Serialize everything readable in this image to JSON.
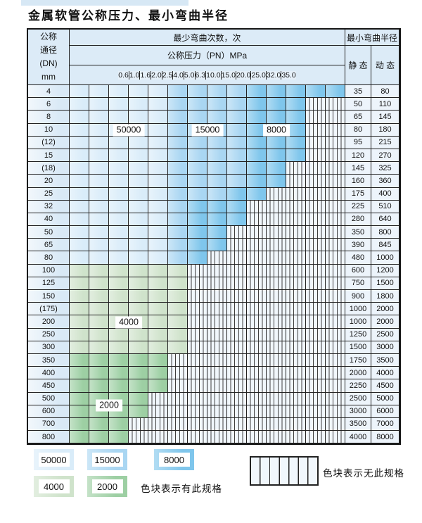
{
  "title": "金属软管公称压力、最小弯曲半径",
  "colors": {
    "cycles_50000": "#d9ecf9",
    "cycles_15000": "#a9d6f2",
    "cycles_8000": "#7fc6ec",
    "cycles_4000": "#cfe3cb",
    "cycles_2000": "#9dcfa3",
    "no_spec_bg": "#f1f7fc"
  },
  "table": {
    "header": {
      "dn_lines": [
        "公称",
        "通径",
        "(DN)",
        "mm"
      ],
      "bend_times": "最少弯曲次数，次",
      "pressure": "公称压力（PN）MPa",
      "radius": "最小弯曲半径",
      "static_label": "静 态",
      "dynamic_label": "动 态",
      "pressure_values": [
        "0.6",
        "1.0",
        "1.6",
        "2.0",
        "2.5",
        "4.0",
        "5.0",
        "6.3",
        "10.0",
        "15.0",
        "20.0",
        "25.0",
        "32.0",
        "35.0"
      ]
    },
    "rows": [
      {
        "dn": "4",
        "static": "35",
        "dynamic": "80",
        "zones": [
          [
            "b1",
            5
          ],
          [
            "b2",
            4
          ],
          [
            "b3",
            5
          ]
        ]
      },
      {
        "dn": "6",
        "static": "50",
        "dynamic": "110",
        "zones": [
          [
            "b1",
            5
          ],
          [
            "b2",
            4
          ],
          [
            "b3",
            3
          ]
        ]
      },
      {
        "dn": "8",
        "static": "65",
        "dynamic": "145",
        "zones": [
          [
            "b1",
            5
          ],
          [
            "b2",
            4
          ],
          [
            "b3",
            3
          ]
        ]
      },
      {
        "dn": "10",
        "static": "80",
        "dynamic": "180",
        "zones": [
          [
            "b1",
            5
          ],
          [
            "b2",
            4
          ],
          [
            "b3",
            3
          ]
        ]
      },
      {
        "dn": "(12)",
        "static": "95",
        "dynamic": "215",
        "zones": [
          [
            "b1",
            5
          ],
          [
            "b2",
            4
          ],
          [
            "b3",
            3
          ]
        ]
      },
      {
        "dn": "15",
        "static": "120",
        "dynamic": "270",
        "zones": [
          [
            "b1",
            5
          ],
          [
            "b2",
            4
          ],
          [
            "b3",
            3
          ]
        ]
      },
      {
        "dn": "(18)",
        "static": "145",
        "dynamic": "325",
        "zones": [
          [
            "b1",
            5
          ],
          [
            "b2",
            4
          ],
          [
            "b3",
            2
          ]
        ]
      },
      {
        "dn": "20",
        "static": "160",
        "dynamic": "360",
        "zones": [
          [
            "b1",
            5
          ],
          [
            "b2",
            4
          ],
          [
            "b3",
            2
          ]
        ]
      },
      {
        "dn": "25",
        "static": "175",
        "dynamic": "400",
        "zones": [
          [
            "b1",
            5
          ],
          [
            "b2",
            3
          ],
          [
            "b3",
            2
          ]
        ]
      },
      {
        "dn": "32",
        "static": "225",
        "dynamic": "510",
        "zones": [
          [
            "b1",
            5
          ],
          [
            "b2",
            1
          ],
          [
            "b3",
            3
          ]
        ]
      },
      {
        "dn": "40",
        "static": "280",
        "dynamic": "640",
        "zones": [
          [
            "b1",
            5
          ],
          [
            "b2",
            1
          ],
          [
            "b3",
            3
          ]
        ]
      },
      {
        "dn": "50",
        "static": "350",
        "dynamic": "800",
        "zones": [
          [
            "b1",
            5
          ],
          [
            "b2",
            1
          ],
          [
            "b3",
            2
          ]
        ]
      },
      {
        "dn": "65",
        "static": "390",
        "dynamic": "845",
        "zones": [
          [
            "b1",
            5
          ],
          [
            "b2",
            1
          ],
          [
            "b3",
            2
          ]
        ]
      },
      {
        "dn": "80",
        "static": "480",
        "dynamic": "1000",
        "zones": [
          [
            "b1",
            5
          ],
          [
            "b2",
            1
          ],
          [
            "b3",
            1
          ]
        ]
      },
      {
        "dn": "100",
        "static": "600",
        "dynamic": "1200",
        "zones": [
          [
            "g1",
            6
          ]
        ]
      },
      {
        "dn": "125",
        "static": "750",
        "dynamic": "1500",
        "zones": [
          [
            "g1",
            6
          ]
        ]
      },
      {
        "dn": "150",
        "static": "900",
        "dynamic": "1800",
        "zones": [
          [
            "g1",
            6
          ]
        ]
      },
      {
        "dn": "(175)",
        "static": "1000",
        "dynamic": "2000",
        "zones": [
          [
            "g1",
            6
          ]
        ]
      },
      {
        "dn": "200",
        "static": "1000",
        "dynamic": "2000",
        "zones": [
          [
            "g1",
            6
          ]
        ]
      },
      {
        "dn": "250",
        "static": "1250",
        "dynamic": "2500",
        "zones": [
          [
            "g1",
            6
          ]
        ]
      },
      {
        "dn": "300",
        "static": "1500",
        "dynamic": "3000",
        "zones": [
          [
            "g1",
            6
          ]
        ]
      },
      {
        "dn": "350",
        "static": "1750",
        "dynamic": "3500",
        "zones": [
          [
            "g2",
            5
          ]
        ]
      },
      {
        "dn": "400",
        "static": "2000",
        "dynamic": "4000",
        "zones": [
          [
            "g2",
            5
          ]
        ]
      },
      {
        "dn": "450",
        "static": "2250",
        "dynamic": "4500",
        "zones": [
          [
            "g2",
            5
          ]
        ]
      },
      {
        "dn": "500",
        "static": "2500",
        "dynamic": "5000",
        "zones": [
          [
            "g2",
            4
          ]
        ]
      },
      {
        "dn": "600",
        "static": "3000",
        "dynamic": "6000",
        "zones": [
          [
            "g2",
            4
          ]
        ]
      },
      {
        "dn": "700",
        "static": "3500",
        "dynamic": "7000",
        "zones": [
          [
            "g2",
            3
          ]
        ]
      },
      {
        "dn": "800",
        "static": "4000",
        "dynamic": "8000",
        "zones": [
          [
            "g2",
            3
          ]
        ]
      }
    ],
    "cycle_labels": [
      {
        "text": "50000",
        "dn": "10",
        "cols": [
          "1.6",
          "2.0"
        ],
        "anchor": "middle"
      },
      {
        "text": "15000",
        "dn": "10",
        "cols": [
          "5.0",
          "6.3"
        ],
        "anchor": "middle"
      },
      {
        "text": "8000",
        "dn": "10",
        "cols": [
          "15.0",
          "25.0"
        ],
        "anchor": "middle"
      },
      {
        "text": "4000",
        "dn": "200",
        "cols": [
          "1.6",
          "2.0"
        ],
        "anchor": "middle"
      },
      {
        "text": "2000",
        "dn": "600",
        "cols": [
          "1.0",
          "1.6"
        ],
        "anchor": "top"
      }
    ]
  },
  "legend": {
    "items": [
      {
        "value": "50000",
        "type": "b1"
      },
      {
        "value": "15000",
        "type": "b2"
      },
      {
        "value": "8000",
        "type": "b3"
      },
      {
        "value": "4000",
        "type": "g1"
      },
      {
        "value": "2000",
        "type": "g2"
      }
    ],
    "has_spec_note": "色块表示有此规格",
    "no_spec_note": "色块表示无此规格"
  }
}
